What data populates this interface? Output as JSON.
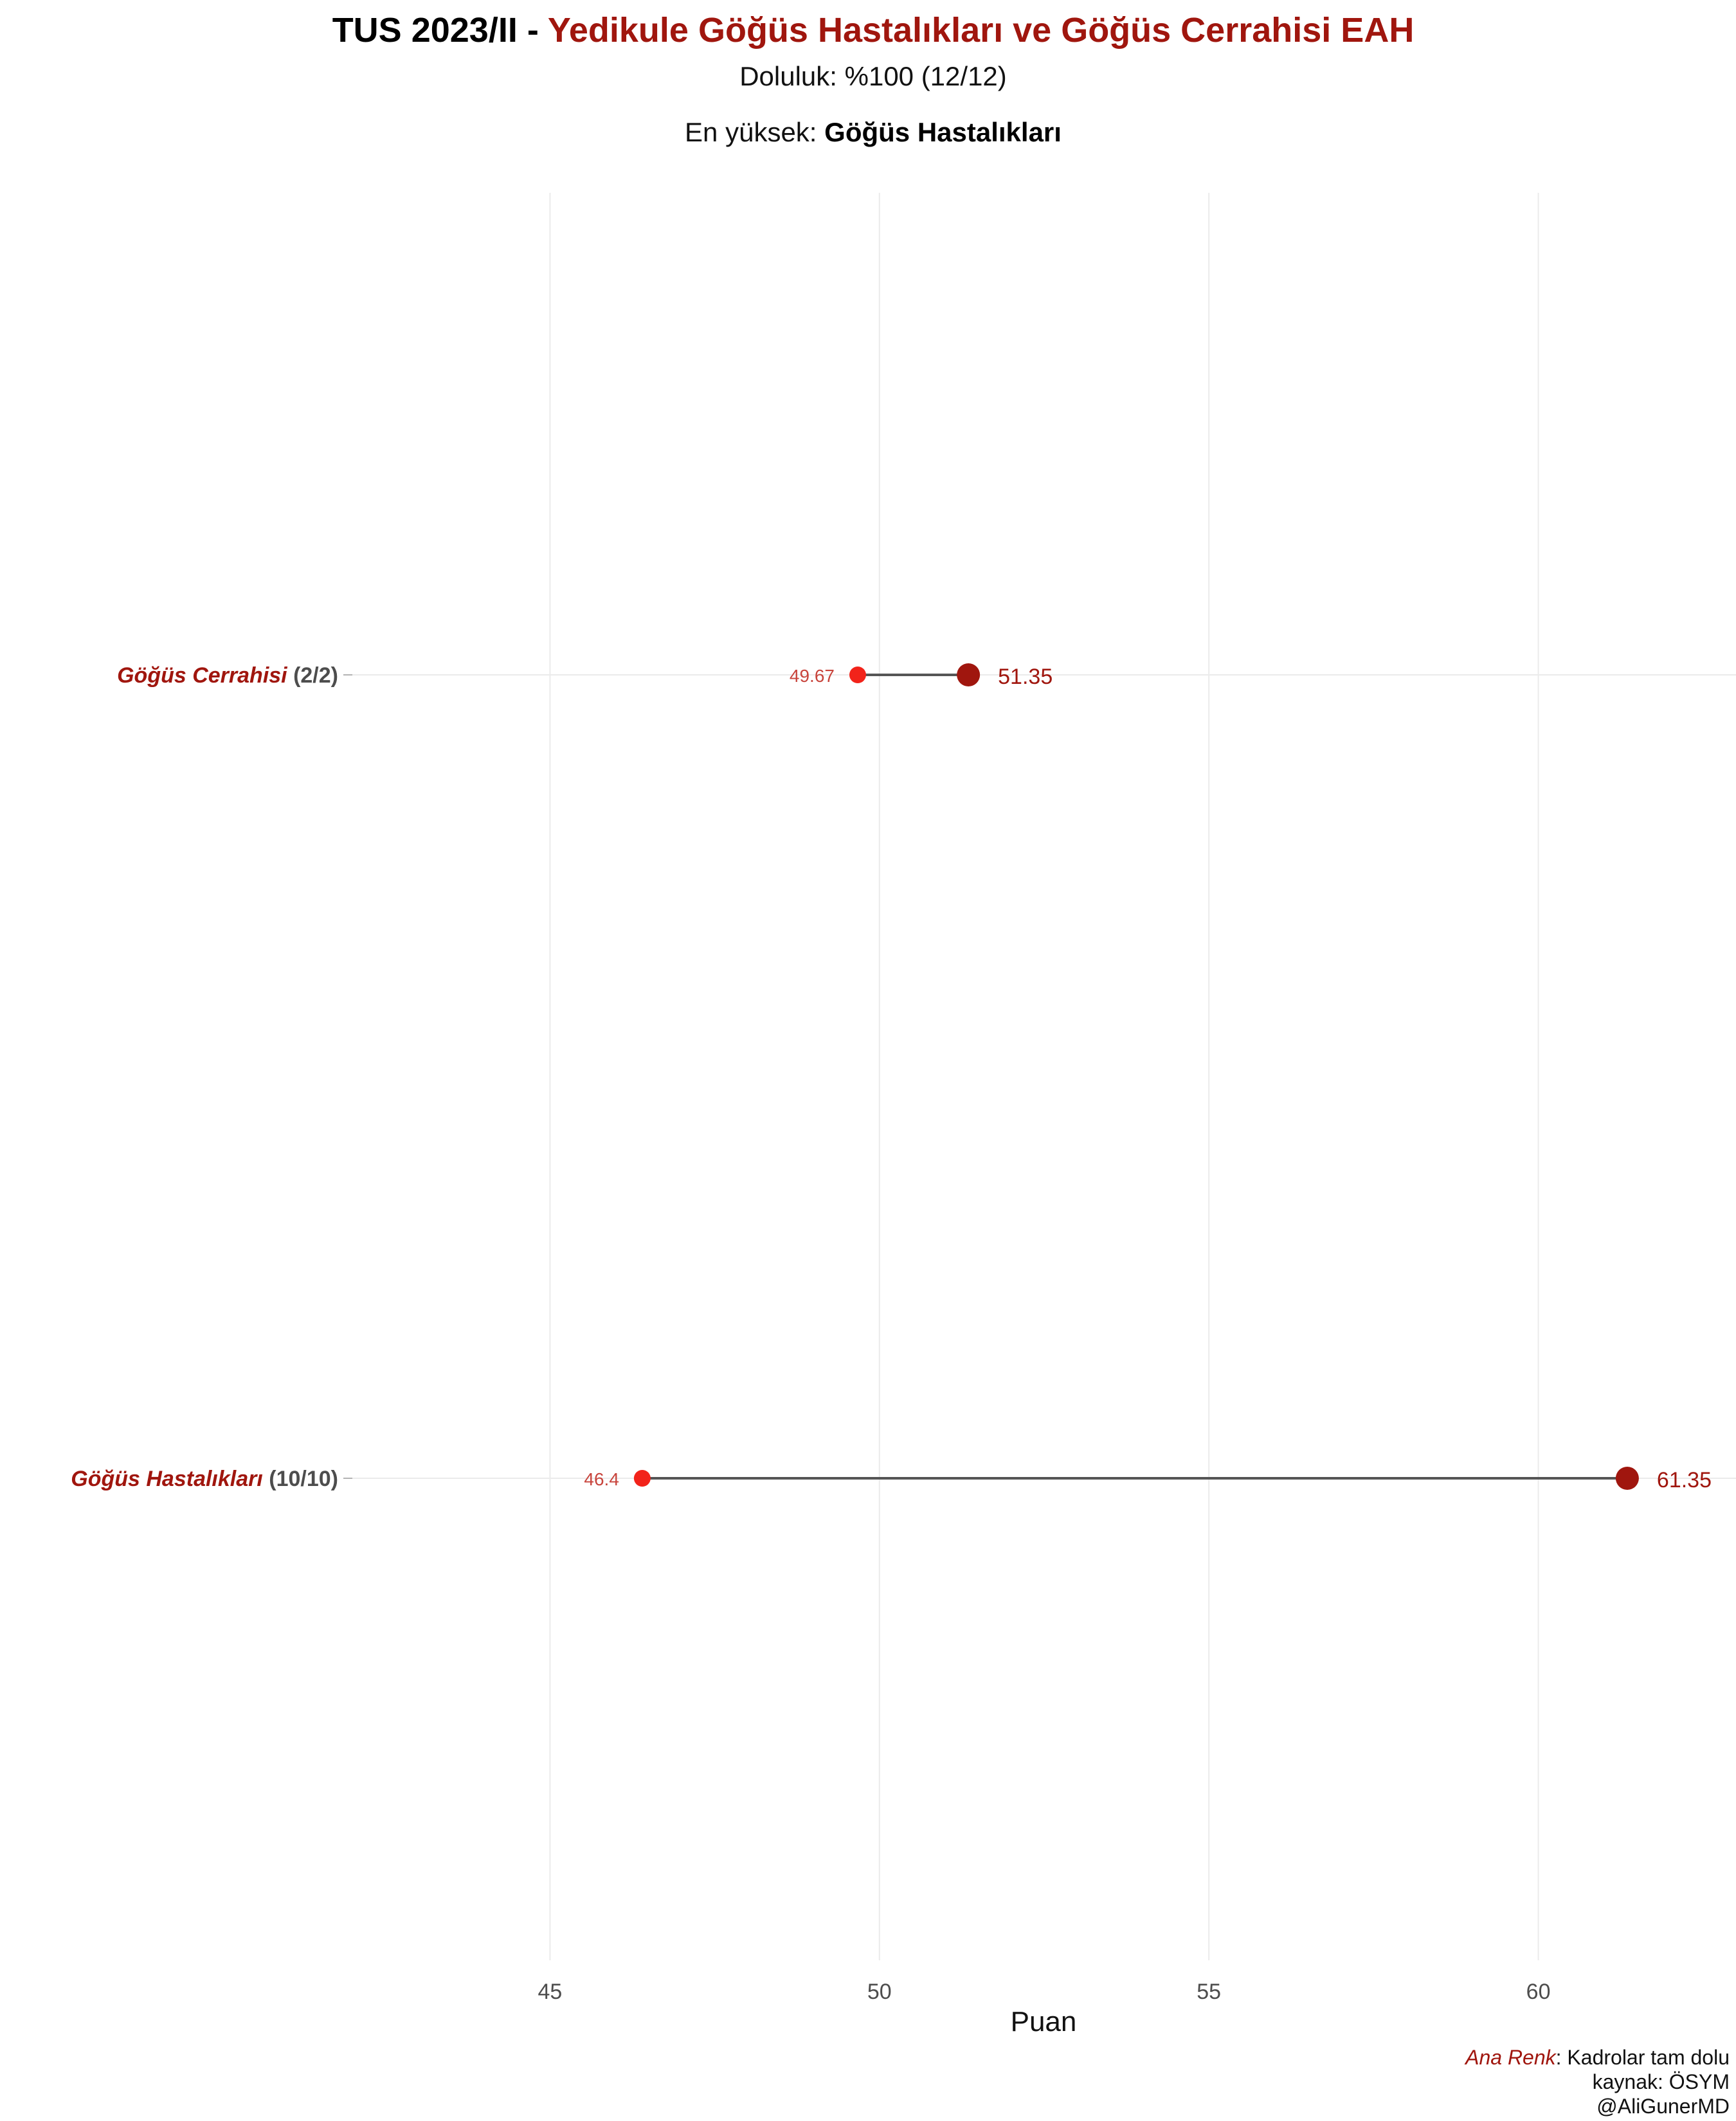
{
  "header": {
    "title_prefix": "TUS 2023/II - ",
    "title_main": "Yedikule Göğüs Hastalıkları ve Göğüs Cerrahisi EAH",
    "subtitle": "Doluluk: %100 (12/12)",
    "highlight_label": "En yüksek: ",
    "highlight_value": "Göğüs Hastalıkları"
  },
  "caption": {
    "legend_colored": "Ana Renk",
    "legend_rest": ": Kadrolar tam dolu",
    "source": "kaynak: ÖSYM",
    "author": "@AliGunerMD"
  },
  "colors": {
    "accent": "#a0160e",
    "min_point": "#f2231a",
    "max_point": "#a0160e",
    "min_label": "#c8443c",
    "segment": "#555555",
    "grid": "#ebebeb",
    "category_count": "#4d4d4d"
  },
  "chart_data": {
    "type": "dumbbell",
    "xlabel": "Puan",
    "ylabel": "",
    "xlim": [
      42.0,
      63.0
    ],
    "xticks": [
      45,
      50,
      55,
      60
    ],
    "xtick_labels": [
      "45",
      "50",
      "55",
      "60"
    ],
    "categories": [
      {
        "name": "Göğüs Cerrahisi",
        "count": "(2/2)",
        "min": 49.67,
        "max": 51.35,
        "min_label": "49.67",
        "max_label": "51.35"
      },
      {
        "name": "Göğüs Hastalıkları",
        "count": "(10/10)",
        "min": 46.4,
        "max": 61.35,
        "min_label": "46.4",
        "max_label": "61.35"
      }
    ]
  }
}
